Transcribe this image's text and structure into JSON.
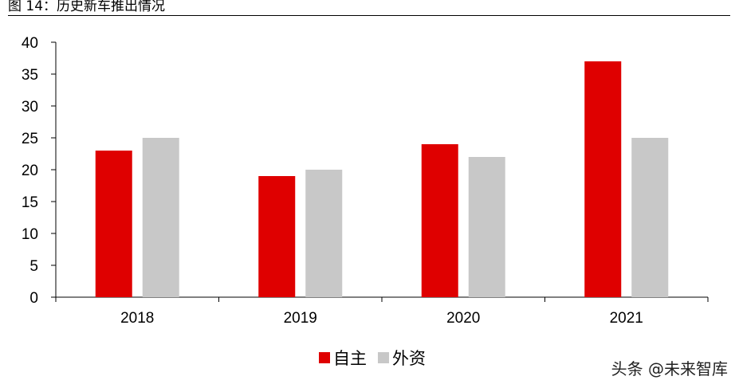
{
  "figure": {
    "title": "图  14：历史新车推出情况"
  },
  "chart_data": {
    "type": "bar",
    "categories": [
      "2018",
      "2019",
      "2020",
      "2021"
    ],
    "series": [
      {
        "name": "自主",
        "values": [
          23,
          19,
          24,
          37
        ],
        "color": "#DF0000"
      },
      {
        "name": "外资",
        "values": [
          25,
          20,
          22,
          25
        ],
        "color": "#C8C8C8"
      }
    ],
    "ylim": [
      0,
      40
    ],
    "yticks": [
      "0",
      "5",
      "10",
      "15",
      "20",
      "25",
      "30",
      "35",
      "40"
    ],
    "grid": false,
    "legend_position": "bottom-center"
  },
  "watermark": "头条 @未来智库"
}
